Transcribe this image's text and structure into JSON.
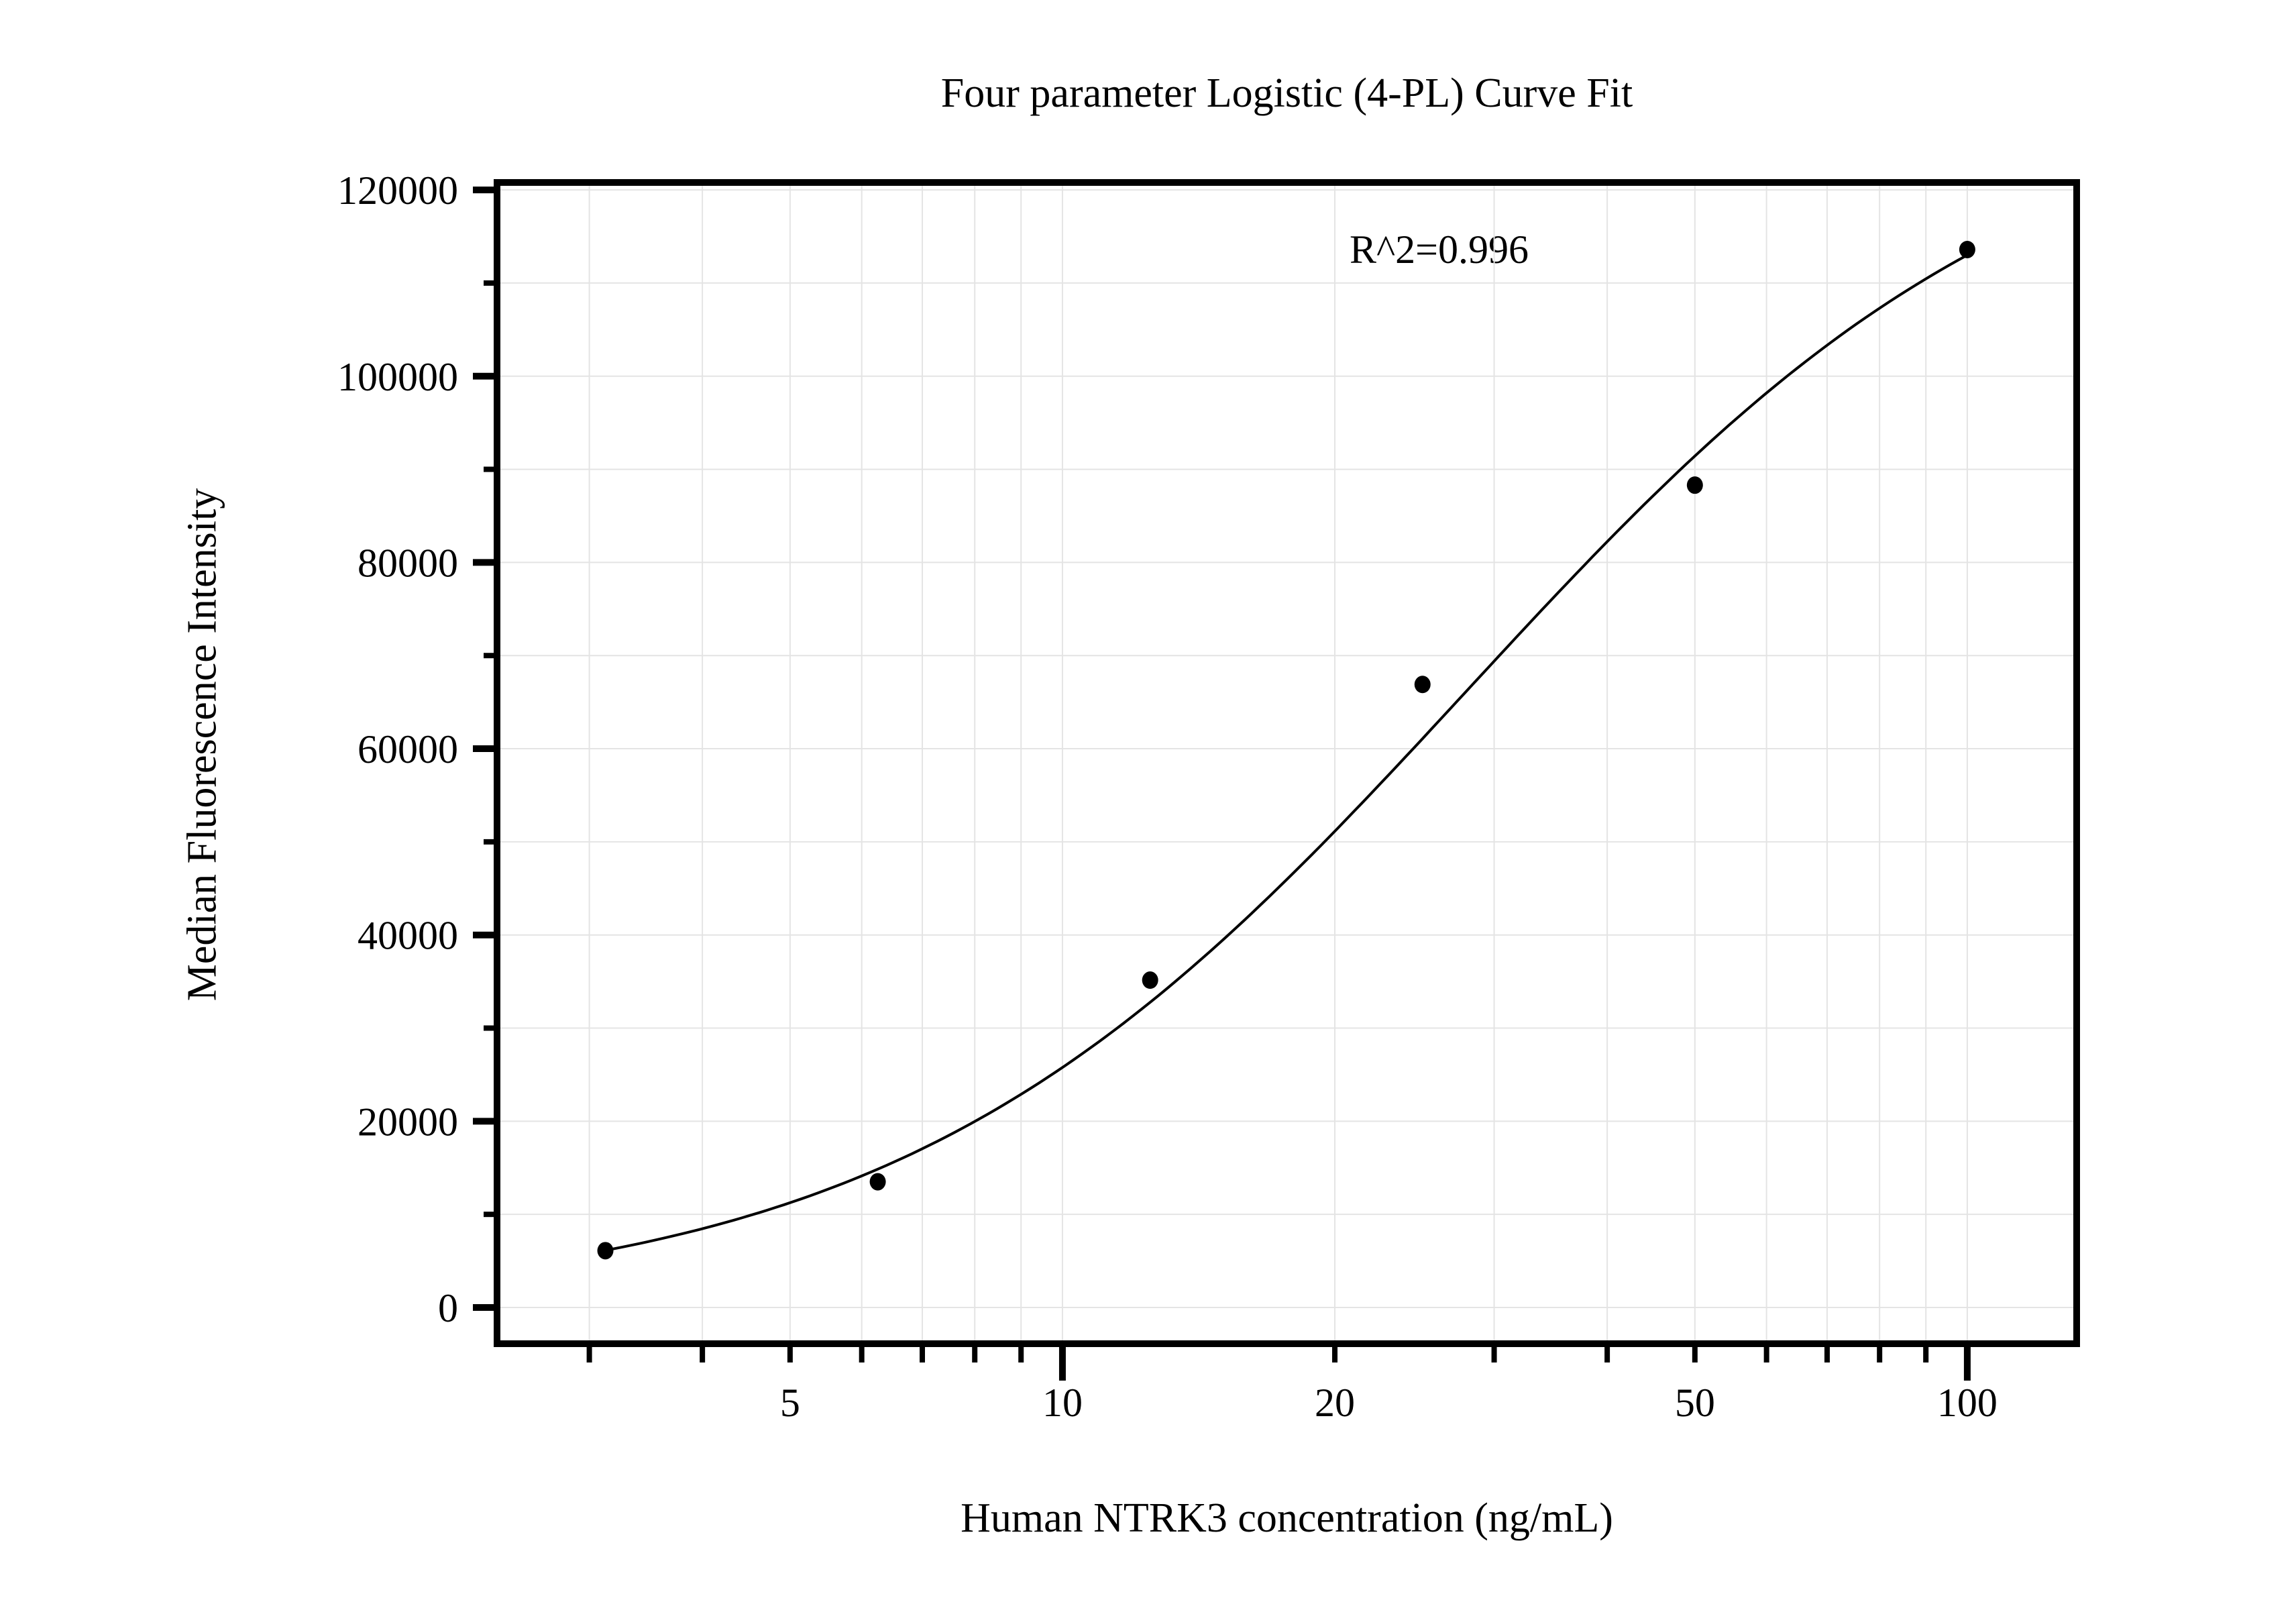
{
  "chart_data": {
    "type": "scatter",
    "title": "Four parameter Logistic (4-PL) Curve Fit",
    "annotation": "R^2=0.996",
    "xlabel": "Human NTRK3 concentration (ng/mL)",
    "ylabel": "Median Fluorescence Intensity",
    "x_scale": "log",
    "x_range": [
      2.372,
      132.1
    ],
    "y_range": [
      -3890,
      120800
    ],
    "x_tick_labels": [
      5,
      10,
      20,
      50,
      100
    ],
    "x_major_ticks": [
      10,
      100
    ],
    "x_minor_ticks": [
      3,
      4,
      5,
      6,
      7,
      8,
      9,
      20,
      30,
      40,
      50,
      60,
      70,
      80,
      90
    ],
    "y_major_ticks": [
      0,
      20000,
      40000,
      60000,
      80000,
      100000,
      120000
    ],
    "y_minor_ticks": [
      10000,
      30000,
      50000,
      70000,
      90000,
      110000
    ],
    "grid": "on-both-axes-every-tick",
    "legend": "none",
    "points": {
      "x": [
        3.125,
        6.25,
        12.5,
        25,
        50,
        100
      ],
      "y": [
        6100,
        13500,
        35150,
        66900,
        88300,
        113600
      ]
    },
    "fit_curve": {
      "model": "4PL",
      "A": 0,
      "B": 1.38,
      "C": 28,
      "D": 132500,
      "x_start": 3.125,
      "x_end": 100
    },
    "colors": {
      "points": "#000000",
      "curve": "#000000",
      "grid": "#e4e4e4",
      "frame": "#000000",
      "text": "#000000",
      "background": "#ffffff"
    }
  }
}
